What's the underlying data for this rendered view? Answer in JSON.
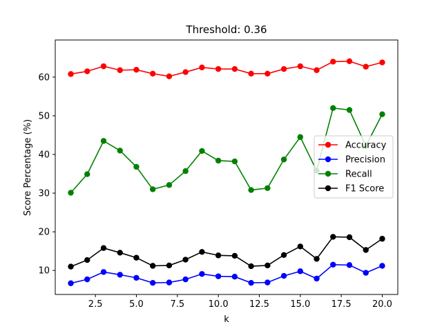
{
  "chart_data": {
    "type": "line",
    "title": "Threshold: 0.36",
    "xlabel": "k",
    "ylabel": "Score Percentage (%)",
    "xlim": [
      0.05,
      20.95
    ],
    "ylim": [
      3.8,
      69.6
    ],
    "xticks": [
      2.5,
      5.0,
      7.5,
      10.0,
      12.5,
      15.0,
      17.5,
      20.0
    ],
    "xtick_labels": [
      "2.5",
      "5.0",
      "7.5",
      "10.0",
      "12.5",
      "15.0",
      "17.5",
      "20.0"
    ],
    "yticks": [
      10,
      20,
      30,
      40,
      50,
      60
    ],
    "ytick_labels": [
      "10",
      "20",
      "30",
      "40",
      "50",
      "60"
    ],
    "grid": false,
    "legend_position": "center-right",
    "x": [
      1,
      2,
      3,
      4,
      5,
      6,
      7,
      8,
      9,
      10,
      11,
      12,
      13,
      14,
      15,
      16,
      17,
      18,
      19,
      20
    ],
    "series": [
      {
        "name": "Accuracy",
        "color": "#ff0000",
        "values": [
          60.8,
          61.5,
          62.8,
          61.8,
          61.9,
          60.9,
          60.2,
          61.3,
          62.5,
          62.1,
          62.1,
          60.9,
          60.9,
          62.1,
          62.8,
          61.8,
          64.0,
          64.1,
          62.7,
          63.8
        ]
      },
      {
        "name": "Precision",
        "color": "#0000ff",
        "values": [
          6.7,
          7.7,
          9.6,
          8.9,
          8.1,
          6.8,
          6.9,
          7.7,
          9.1,
          8.5,
          8.4,
          6.8,
          6.9,
          8.6,
          9.8,
          7.9,
          11.5,
          11.4,
          9.4,
          11.2
        ]
      },
      {
        "name": "Recall",
        "color": "#008000",
        "values": [
          30.1,
          34.9,
          43.5,
          41.0,
          36.8,
          31.0,
          32.1,
          35.7,
          40.9,
          38.4,
          38.2,
          30.8,
          31.3,
          38.7,
          44.5,
          35.8,
          52.0,
          51.5,
          42.2,
          50.4
        ]
      },
      {
        "name": "F1 Score",
        "color": "#000000",
        "values": [
          11.0,
          12.7,
          15.8,
          14.6,
          13.3,
          11.2,
          11.3,
          12.8,
          14.8,
          13.9,
          13.8,
          11.1,
          11.3,
          14.0,
          16.2,
          13.0,
          18.7,
          18.6,
          15.3,
          18.2
        ]
      }
    ]
  }
}
